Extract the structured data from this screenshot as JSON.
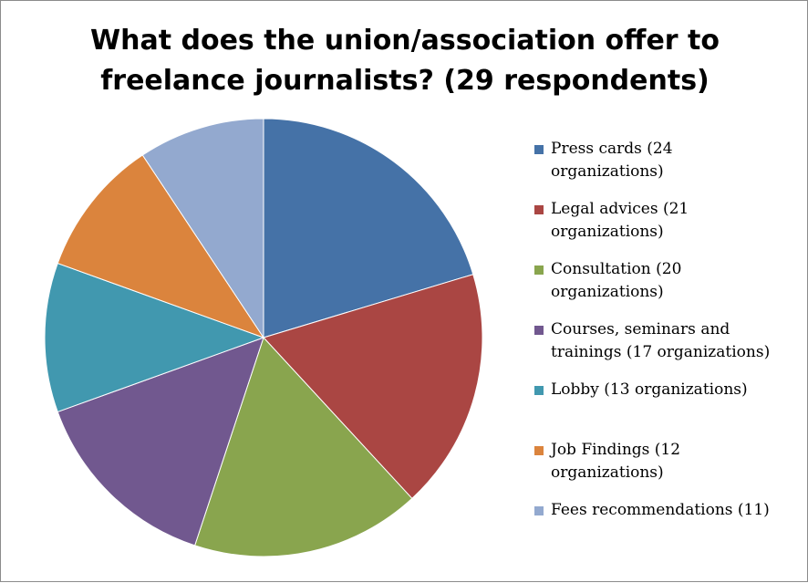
{
  "chart_data": {
    "type": "pie",
    "title_lines": [
      "What does the union/association offer to",
      "freelance journalists? (29 respondents)"
    ],
    "slices": [
      {
        "label_lines": [
          "Press cards (24",
          "organizations)"
        ],
        "value": 24,
        "color": "#4572A7"
      },
      {
        "label_lines": [
          "Legal advices (21",
          "organizations)"
        ],
        "value": 21,
        "color": "#AA4643"
      },
      {
        "label_lines": [
          "Consultation (20",
          "organizations)"
        ],
        "value": 20,
        "color": "#89A54E"
      },
      {
        "label_lines": [
          "Courses, seminars and",
          "trainings (17 organizations)"
        ],
        "value": 17,
        "color": "#71588F"
      },
      {
        "label_lines": [
          "Lobby (13 organizations)"
        ],
        "value": 13,
        "color": "#4198AF"
      },
      {
        "label_lines": [
          "Job Findings (12",
          "organizations)"
        ],
        "value": 12,
        "color": "#DB843D"
      },
      {
        "label_lines": [
          "Fees recommendations (11)"
        ],
        "value": 11,
        "color": "#93A9CF"
      }
    ],
    "legend_position": "right"
  }
}
